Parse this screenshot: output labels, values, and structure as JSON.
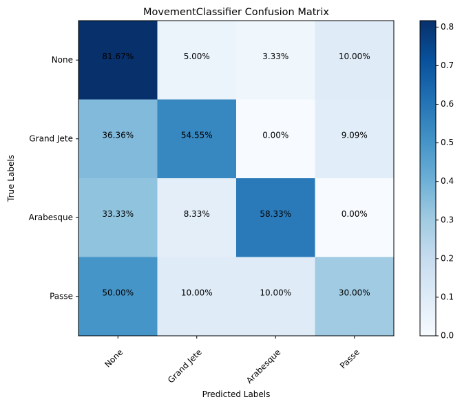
{
  "chart_data": {
    "type": "heatmap",
    "title": "MovementClassifier Confusion Matrix",
    "xlabel": "Predicted Labels",
    "ylabel": "True Labels",
    "x_categories": [
      "None",
      "Grand Jete",
      "Arabesque",
      "Passe"
    ],
    "y_categories": [
      "None",
      "Grand Jete",
      "Arabesque",
      "Passe"
    ],
    "values": [
      [
        0.8167,
        0.05,
        0.0333,
        0.1
      ],
      [
        0.3636,
        0.5455,
        0.0,
        0.0909
      ],
      [
        0.3333,
        0.0833,
        0.5833,
        0.0
      ],
      [
        0.5,
        0.1,
        0.1,
        0.3
      ]
    ],
    "cell_labels": [
      [
        "81.67%",
        "5.00%",
        "3.33%",
        "10.00%"
      ],
      [
        "36.36%",
        "54.55%",
        "0.00%",
        "9.09%"
      ],
      [
        "33.33%",
        "8.33%",
        "58.33%",
        "0.00%"
      ],
      [
        "50.00%",
        "10.00%",
        "10.00%",
        "30.00%"
      ]
    ],
    "colormap": "Blues",
    "color_range": [
      0,
      0.8167
    ],
    "colorbar_ticks": [
      "0.0",
      "0.1",
      "0.2",
      "0.3",
      "0.4",
      "0.5",
      "0.6",
      "0.7",
      "0.8"
    ],
    "colorbar_tick_values": [
      0,
      0.1,
      0.2,
      0.3,
      0.4,
      0.5,
      0.6,
      0.7,
      0.8
    ],
    "x_tick_rotation": 45,
    "grid": false
  }
}
